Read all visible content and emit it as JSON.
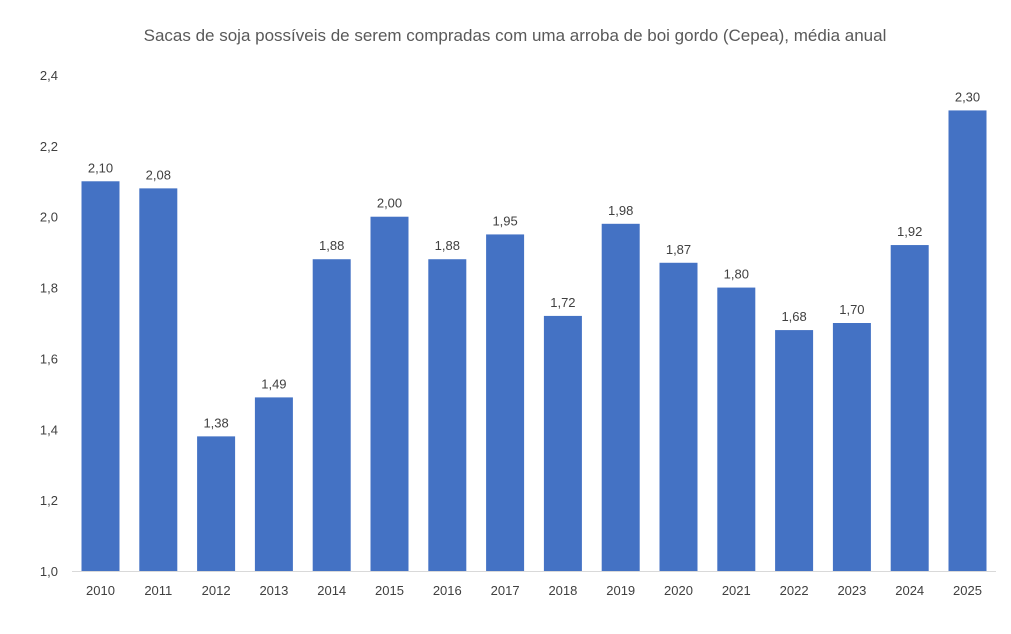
{
  "chart_data": {
    "type": "bar",
    "title": "Sacas de soja possíveis de serem compradas com uma arroba de boi gordo (Cepea), média anual",
    "xlabel": "",
    "ylabel": "",
    "categories": [
      "2010",
      "2011",
      "2012",
      "2013",
      "2014",
      "2015",
      "2016",
      "2017",
      "2018",
      "2019",
      "2020",
      "2021",
      "2022",
      "2023",
      "2024",
      "2025"
    ],
    "values": [
      2.1,
      2.08,
      1.38,
      1.49,
      1.88,
      2.0,
      1.88,
      1.95,
      1.72,
      1.98,
      1.87,
      1.8,
      1.68,
      1.7,
      1.92,
      2.3
    ],
    "data_labels": [
      "2,10",
      "2,08",
      "1,38",
      "1,49",
      "1,88",
      "2,00",
      "1,88",
      "1,95",
      "1,72",
      "1,98",
      "1,87",
      "1,80",
      "1,68",
      "1,70",
      "1,92",
      "2,30"
    ],
    "ylim": [
      1.0,
      2.4
    ],
    "yticks": [
      "1,0",
      "1,2",
      "1,4",
      "1,6",
      "1,8",
      "2,0",
      "2,2",
      "2,4"
    ],
    "grid": false,
    "legend": "none",
    "colors": {
      "bar": "#4472C4",
      "axis": "#D9D9D9",
      "text": "#595959"
    }
  }
}
